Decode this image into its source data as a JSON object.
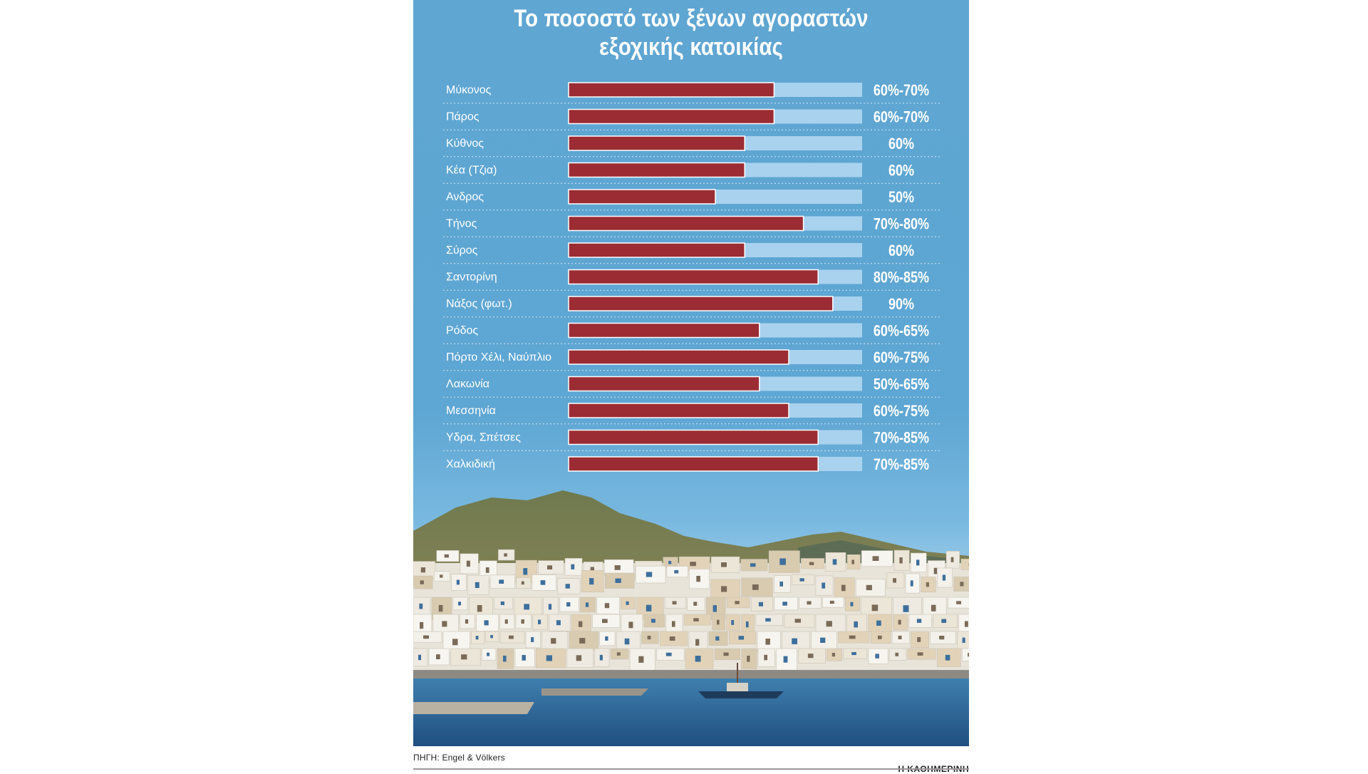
{
  "title_lines": [
    "Το ποσοστό των ξένων αγοραστών",
    "εξοχικής κατοικίας"
  ],
  "footer": {
    "source": "ΠΗΓΗ: Engel & Völkers",
    "brand": "Η ΚΑΘΗΜΕΡΙΝΗ"
  },
  "colors": {
    "bar": "#9b2c33",
    "track": "#a9d2ee",
    "panel": "#5fa6d2",
    "text": "#ffffff"
  },
  "chart_data": {
    "type": "bar",
    "orientation": "horizontal",
    "title": "Το ποσοστό των ξένων αγοραστών εξοχικής κατοικίας",
    "xlim": [
      0,
      100
    ],
    "unit": "%",
    "categories": [
      "Μύκονος",
      "Πάρος",
      "Κύθνος",
      "Κέα (Τζια)",
      "Ανδρος",
      "Τήνος",
      "Σύρος",
      "Σαντορίνη",
      "Νάξος (φωτ.)",
      "Ρόδος",
      "Πόρτο Χέλι, Ναύπλιο",
      "Λακωνία",
      "Μεσσηνία",
      "Υδρα, Σπέτσες",
      "Χαλκιδική"
    ],
    "values": [
      70,
      70,
      60,
      60,
      50,
      80,
      60,
      85,
      90,
      65,
      75,
      65,
      75,
      85,
      85
    ],
    "labels": [
      "60%-70%",
      "60%-70%",
      "60%",
      "60%",
      "50%",
      "70%-80%",
      "60%",
      "80%-85%",
      "90%",
      "60%-65%",
      "60%-75%",
      "50%-65%",
      "60%-75%",
      "70%-85%",
      "70%-85%"
    ]
  }
}
